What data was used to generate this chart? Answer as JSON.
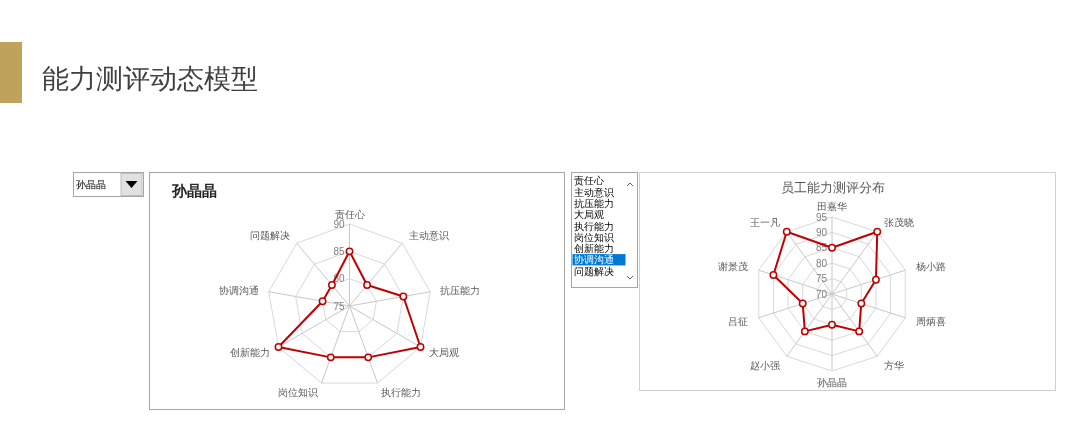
{
  "chart_data": [
    {
      "type": "other",
      "title": "能力测评动态模型"
    },
    {
      "type": "other",
      "annotations": [
        "孙晶晶"
      ]
    },
    {
      "type": "radar",
      "title": "孙晶晶",
      "categories": [
        "责任心",
        "主动意识",
        "抗压能力",
        "大局观",
        "执行能力",
        "岗位知识",
        "创新能力",
        "协调沟通",
        "问题解决"
      ],
      "series": [
        {
          "color": "#c00000",
          "values": [
            85,
            80,
            85,
            90,
            85,
            85,
            90,
            80,
            80
          ]
        }
      ],
      "ylim": [
        75,
        90
      ],
      "yticks": [
        75,
        80,
        85,
        90
      ],
      "grid": true,
      "marker": "circle",
      "line_style": "solid"
    },
    {
      "type": "other",
      "annotations": [
        "责任心",
        "主动意识",
        "抗压能力",
        "大局观",
        "执行能力",
        "岗位知识",
        "创新能力",
        "协调沟通",
        "问题解决"
      ]
    },
    {
      "type": "radar",
      "title": "员工能力测评分布",
      "categories": [
        "田嘉华",
        "张茂晓",
        "杨小路",
        "周炳喜",
        "方华",
        "孙晶晶",
        "赵小强",
        "吕征",
        "谢景茂",
        "王一凡"
      ],
      "series": [
        {
          "color": "#c00000",
          "values": [
            85,
            95,
            85,
            80,
            85,
            80,
            85,
            80,
            90,
            95
          ]
        }
      ],
      "ylim": [
        70,
        95
      ],
      "yticks": [
        70,
        75,
        80,
        85,
        90,
        95
      ],
      "grid": true,
      "marker": "circle",
      "line_style": "solid"
    }
  ]
}
